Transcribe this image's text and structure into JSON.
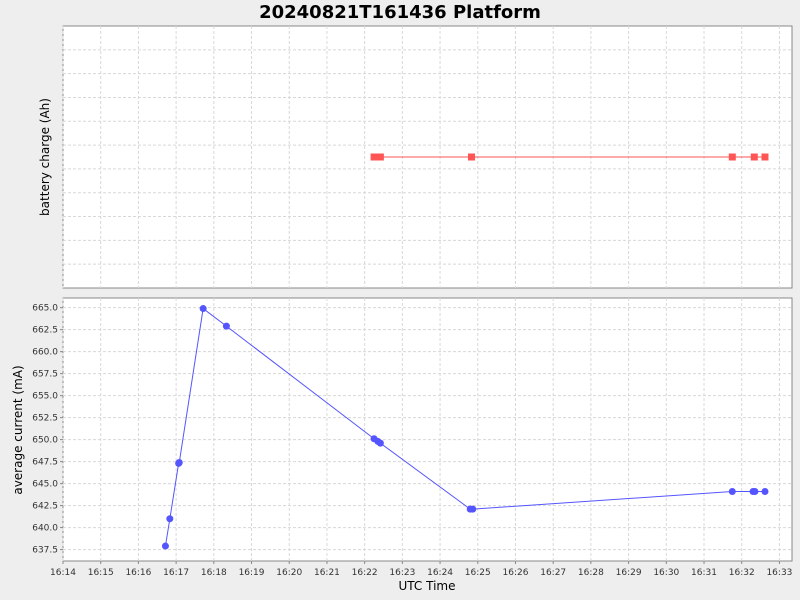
{
  "chart_data": [
    {
      "type": "line",
      "title": "20240821T161436 Platform",
      "xlabel": "",
      "ylabel": "battery charge (Ah)",
      "marker": "square",
      "color": "#ff5555",
      "x_range": [
        "16:14:00",
        "16:33:20"
      ],
      "grid": true,
      "x": [
        "16:22:15",
        "16:22:25",
        "16:24:50",
        "16:31:45",
        "16:32:20",
        "16:32:37"
      ],
      "y": [
        0.5,
        0.5,
        0.5,
        0.5,
        0.5,
        0.5
      ]
    },
    {
      "type": "line",
      "xlabel": "UTC Time",
      "ylabel": "average current (mA)",
      "marker": "circle",
      "color": "#5555ff",
      "ylim": [
        636.2,
        666.1
      ],
      "x_range": [
        "16:14:00",
        "16:33:20"
      ],
      "grid": true,
      "x_ticks": [
        "16:14",
        "16:15",
        "16:16",
        "16:17",
        "16:18",
        "16:19",
        "16:20",
        "16:21",
        "16:22",
        "16:23",
        "16:24",
        "16:25",
        "16:26",
        "16:27",
        "16:28",
        "16:29",
        "16:30",
        "16:31",
        "16:32",
        "16:33"
      ],
      "y_ticks": [
        "637.5",
        "640.0",
        "642.5",
        "645.0",
        "647.5",
        "650.0",
        "652.5",
        "655.0",
        "657.5",
        "660.0",
        "662.5",
        "665.0"
      ],
      "x": [
        "16:16:43",
        "16:16:50",
        "16:17:04",
        "16:17:05",
        "16:17:43",
        "16:18:20",
        "16:22:15",
        "16:22:21",
        "16:22:25",
        "16:24:48",
        "16:24:52",
        "16:31:45",
        "16:32:18",
        "16:32:21",
        "16:32:37"
      ],
      "y": [
        637.9,
        641.0,
        647.3,
        647.4,
        664.9,
        662.9,
        650.1,
        649.8,
        649.6,
        642.1,
        642.1,
        644.1,
        644.1,
        644.1,
        644.1
      ]
    }
  ]
}
